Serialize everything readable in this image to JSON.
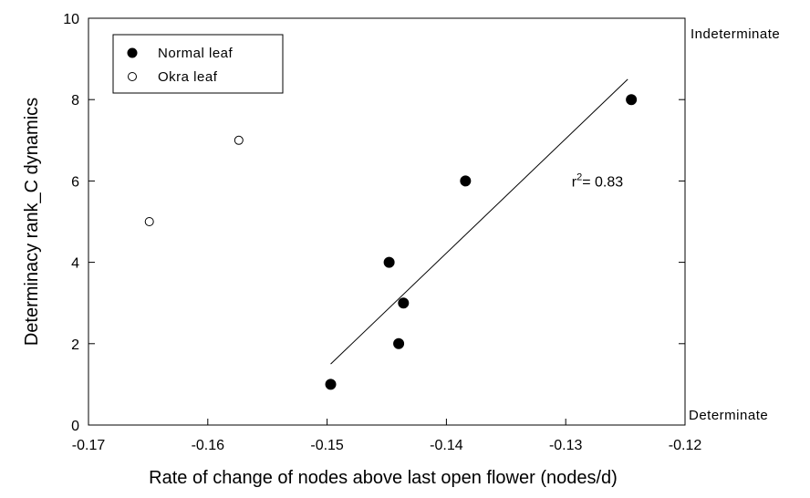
{
  "chart_data": {
    "type": "scatter",
    "xlabel": "Rate of change of nodes above last open flower (nodes/d)",
    "ylabel": "Determinacy rank_C dynamics",
    "xlim": [
      -0.17,
      -0.12
    ],
    "ylim": [
      0,
      10
    ],
    "x_ticks": [
      -0.17,
      -0.16,
      -0.15,
      -0.14,
      -0.13,
      -0.12
    ],
    "x_tick_labels": [
      "-0.17",
      "-0.16",
      "-0.15",
      "-0.14",
      "-0.13",
      "-0.12"
    ],
    "y_ticks": [
      0,
      2,
      4,
      6,
      8,
      10
    ],
    "y_tick_labels": [
      "0",
      "2",
      "4",
      "6",
      "8",
      "10"
    ],
    "grid": false,
    "legend_position": "top-left",
    "series": [
      {
        "name": "Normal leaf",
        "marker": "filled-circle",
        "color": "#000000",
        "points": [
          {
            "x": -0.1497,
            "y": 1
          },
          {
            "x": -0.1448,
            "y": 4
          },
          {
            "x": -0.144,
            "y": 2
          },
          {
            "x": -0.1436,
            "y": 3
          },
          {
            "x": -0.1384,
            "y": 6
          },
          {
            "x": -0.1245,
            "y": 8
          }
        ]
      },
      {
        "name": "Okra leaf",
        "marker": "open-circle",
        "color": "#000000",
        "points": [
          {
            "x": -0.1649,
            "y": 5
          },
          {
            "x": -0.1574,
            "y": 7
          }
        ]
      }
    ],
    "regression_line": {
      "series": "Normal leaf",
      "x": [
        -0.1497,
        -0.1248
      ],
      "y": [
        1.5,
        8.5
      ]
    },
    "annotations": {
      "r_squared_prefix": "r",
      "r_squared_exponent": "2",
      "r_squared_value": "= 0.83",
      "r_squared_at": {
        "x": -0.1295,
        "y": 6
      },
      "top_label": "Indeterminate",
      "bottom_label": "Determinate"
    }
  }
}
